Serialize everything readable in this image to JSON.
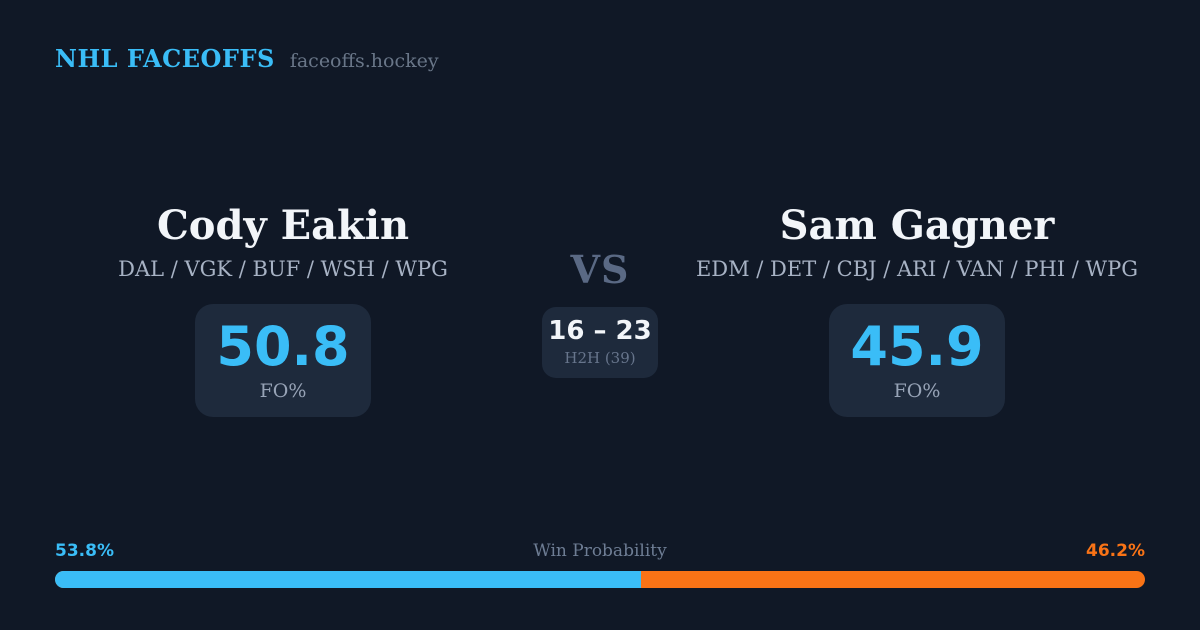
{
  "brand": {
    "title": "NHL FACEOFFS",
    "domain": "faceoffs.hockey"
  },
  "colors": {
    "background": "#101826",
    "accent_blue": "#3abdf7",
    "accent_orange": "#f97316",
    "card_background": "#1e2a3c"
  },
  "player_left": {
    "name": "Cody Eakin",
    "teams": "DAL / VGK / BUF / WSH / WPG",
    "stat_value": "50.8",
    "stat_label": "FO%"
  },
  "player_right": {
    "name": "Sam Gagner",
    "teams": "EDM / DET / CBJ / ARI / VAN / PHI / WPG",
    "stat_value": "45.9",
    "stat_label": "FO%"
  },
  "matchup": {
    "vs_label": "VS",
    "h2h_score": "16 – 23",
    "h2h_label": "H2H (39)"
  },
  "win_probability": {
    "label": "Win Probability",
    "left_pct": "53.8%",
    "right_pct": "46.2%",
    "left_value": 53.8,
    "right_value": 46.2
  }
}
